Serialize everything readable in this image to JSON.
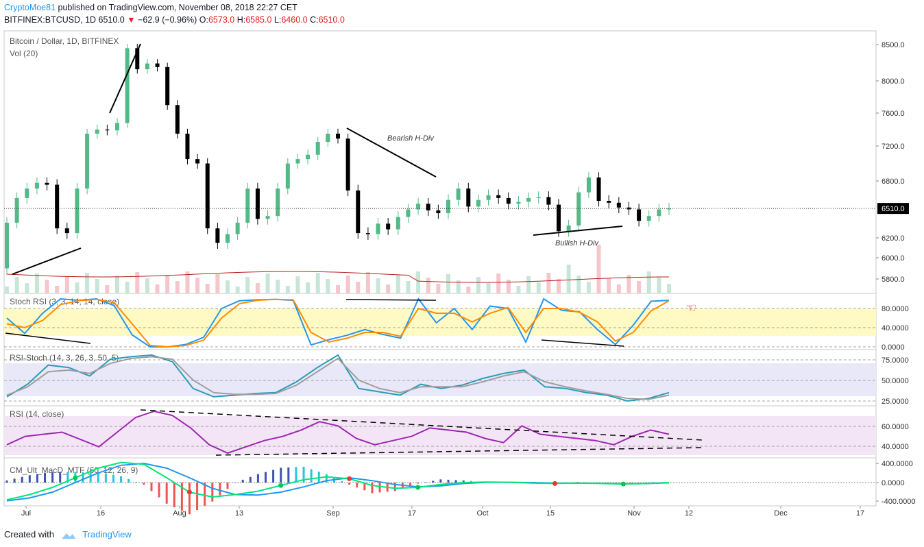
{
  "header": {
    "author": "CryptoMoe81",
    "published": "published on TradingView.com, November 08, 2018 22:27 CET",
    "symbol": "BITFINEX:BTCUSD, 1D",
    "last": "6510.0",
    "change": "−62.9 (−0.96%)",
    "o_label": "O:",
    "o": "6573.0",
    "h_label": "H:",
    "h": "6585.0",
    "l_label": "L:",
    "l": "6460.0",
    "c_label": "C:",
    "c": "6510.0"
  },
  "footer": {
    "created_with": "Created with",
    "brand": "TradingView"
  },
  "colors": {
    "up": "#53b987",
    "down": "#000000",
    "vol_up": "#c8e6d8",
    "vol_down": "#f5c6cb",
    "grid": "#f0f3fa",
    "axis": "#555555",
    "accent": "#2196f3",
    "orange": "#ff8c00",
    "purple": "#9c27b0",
    "red": "#e0221f"
  },
  "chart_data": [
    {
      "type": "candlestick",
      "title": "Bitcoin / Dollar, 1D, BITFINEX",
      "volume_label": "Vol (20)",
      "price_tag": "6510.0",
      "y_ticks": [
        "8500.0",
        "8000.0",
        "7600.0",
        "7200.0",
        "6800.0",
        "6200.0",
        "6000.0",
        "5800.0"
      ],
      "x_ticks": [
        "Jul",
        "16",
        "Aug",
        "13",
        "Sep",
        "17",
        "Oct",
        "15",
        "Nov",
        "12",
        "Dec",
        "17"
      ],
      "annotations": [
        "Bearish H-Div",
        "Bullish H-Div"
      ],
      "close": [
        6360,
        6620,
        6720,
        6780,
        6760,
        6300,
        6250,
        6720,
        7350,
        7400,
        7390,
        7480,
        8450,
        8160,
        8240,
        8190,
        7700,
        7350,
        7050,
        7000,
        6300,
        6150,
        6240,
        6360,
        6720,
        6400,
        6430,
        6720,
        7000,
        7050,
        7100,
        7250,
        7350,
        7290,
        6700,
        6250,
        6240,
        6350,
        6290,
        6420,
        6500,
        6560,
        6490,
        6460,
        6600,
        6720,
        6530,
        6600,
        6650,
        6620,
        6560,
        6580,
        6620,
        6630,
        6550,
        6270,
        6330,
        6680,
        6840,
        6590,
        6570,
        6520,
        6500,
        6380,
        6430,
        6500,
        6510
      ]
    },
    {
      "type": "line",
      "title": "Stoch RSI (3, 3, 14, 14, close)",
      "y_ticks": [
        "80.0000",
        "40.0000",
        "0.0000"
      ],
      "series": [
        {
          "name": "K",
          "values": [
            60,
            28,
            70,
            100,
            97,
            100,
            86,
            25,
            0,
            0,
            5,
            20,
            80,
            96,
            98,
            99,
            97,
            4,
            15,
            24,
            36,
            26,
            18,
            100,
            50,
            80,
            36,
            85,
            80,
            10,
            100,
            76,
            73,
            36,
            5,
            45,
            95,
            97
          ]
        },
        {
          "name": "D",
          "values": [
            48,
            40,
            55,
            88,
            96,
            99,
            92,
            48,
            3,
            0,
            3,
            14,
            60,
            90,
            97,
            99,
            98,
            30,
            10,
            18,
            30,
            30,
            22,
            80,
            70,
            70,
            52,
            70,
            82,
            30,
            80,
            80,
            72,
            52,
            12,
            30,
            75,
            96
          ]
        }
      ]
    },
    {
      "type": "line",
      "title": "RSI-Stoch (14, 3, 26, 3, 50, 5)",
      "y_ticks": [
        "75.0000",
        "50.0000",
        "25.0000"
      ],
      "series": [
        {
          "name": "K",
          "values": [
            30,
            45,
            68,
            65,
            55,
            75,
            78,
            80,
            72,
            40,
            30,
            32,
            34,
            35,
            48,
            65,
            80,
            40,
            36,
            32,
            45,
            40,
            44,
            52,
            58,
            62,
            42,
            40,
            35,
            32,
            25,
            28,
            35
          ]
        },
        {
          "name": "D",
          "values": [
            32,
            42,
            60,
            62,
            58,
            70,
            76,
            78,
            75,
            50,
            35,
            33,
            33,
            34,
            44,
            60,
            76,
            50,
            40,
            35,
            42,
            42,
            42,
            48,
            55,
            60,
            48,
            42,
            37,
            33,
            28,
            27,
            32
          ]
        }
      ]
    },
    {
      "type": "line",
      "title": "RSI (14, close)",
      "y_ticks": [
        "60.0000",
        "40.0000"
      ],
      "series": [
        {
          "name": "RSI",
          "values": [
            40,
            48,
            50,
            52,
            45,
            38,
            52,
            66,
            72,
            68,
            56,
            40,
            32,
            38,
            44,
            48,
            54,
            62,
            58,
            46,
            40,
            44,
            48,
            56,
            54,
            52,
            46,
            42,
            58,
            50,
            48,
            46,
            44,
            40,
            48,
            54,
            50
          ]
        }
      ]
    },
    {
      "type": "histogram",
      "title": "CM_Ult_MacD_MTF (60, 12, 26, 9)",
      "y_ticks": [
        "400.0000",
        "0.0000",
        "-400.0000"
      ],
      "series": [
        {
          "name": "MACD",
          "values": [
            -360,
            -250,
            -100,
            100,
            300,
            420,
            380,
            100,
            -200,
            -300,
            -250,
            -180,
            -60,
            60,
            120,
            80,
            -60,
            -120,
            -100,
            -40,
            0,
            10,
            5,
            -10,
            -20,
            -10,
            -20,
            -30,
            -20,
            0
          ]
        },
        {
          "name": "Signal",
          "values": [
            -380,
            -320,
            -200,
            0,
            200,
            360,
            400,
            300,
            100,
            -120,
            -250,
            -260,
            -200,
            -90,
            40,
            100,
            40,
            -40,
            -90,
            -70,
            -20,
            5,
            5,
            0,
            -10,
            -15,
            -15,
            -25,
            -22,
            -5
          ]
        }
      ]
    }
  ]
}
